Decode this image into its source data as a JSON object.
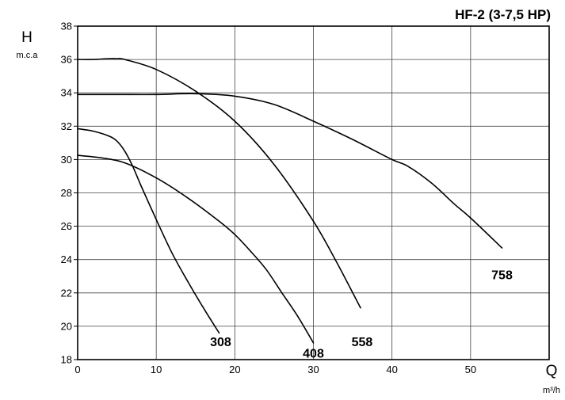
{
  "chart_data": {
    "type": "line",
    "title": "HF-2 (3-7,5 HP)",
    "ylabel": "H",
    "yunit": "m.c.a",
    "xlabel": "Q",
    "xunit": "m³/h",
    "xlim": [
      0,
      60
    ],
    "ylim": [
      18,
      38
    ],
    "xticks": [
      "0",
      "10",
      "20",
      "30",
      "40",
      "50"
    ],
    "yticks": [
      "18",
      "20",
      "22",
      "24",
      "26",
      "28",
      "30",
      "32",
      "34",
      "36",
      "38"
    ],
    "grid": true,
    "series": [
      {
        "name": "308",
        "x": [
          0,
          2,
          4,
          5,
          6,
          7,
          8,
          10,
          12,
          14,
          16,
          18
        ],
        "y": [
          31.85,
          31.7,
          31.4,
          31.1,
          30.5,
          29.6,
          28.5,
          26.4,
          24.4,
          22.7,
          21.1,
          19.6
        ]
      },
      {
        "name": "408",
        "x": [
          0,
          3,
          6,
          10,
          14,
          18,
          20,
          22,
          24,
          26,
          28,
          30
        ],
        "y": [
          30.25,
          30.1,
          29.8,
          28.9,
          27.7,
          26.3,
          25.5,
          24.5,
          23.4,
          22.0,
          20.6,
          19.0
        ]
      },
      {
        "name": "558",
        "x": [
          0,
          2,
          4,
          5,
          6,
          10,
          15,
          20,
          25,
          30,
          33,
          36
        ],
        "y": [
          36.0,
          36.0,
          36.05,
          36.05,
          36.0,
          35.4,
          34.1,
          32.3,
          29.7,
          26.3,
          23.8,
          21.1
        ]
      },
      {
        "name": "758",
        "x": [
          0,
          5,
          10,
          15,
          20,
          25,
          30,
          35,
          40,
          42,
          45,
          48,
          50,
          54
        ],
        "y": [
          33.9,
          33.9,
          33.9,
          33.95,
          33.8,
          33.3,
          32.3,
          31.2,
          30.0,
          29.6,
          28.6,
          27.3,
          26.5,
          24.7
        ]
      }
    ],
    "labels": [
      {
        "text": "308",
        "x": 18.2,
        "y": 19.1
      },
      {
        "text": "408",
        "x": 30.0,
        "y": 18.4
      },
      {
        "text": "558",
        "x": 36.2,
        "y": 19.1
      },
      {
        "text": "758",
        "x": 54.0,
        "y": 23.1
      }
    ]
  }
}
